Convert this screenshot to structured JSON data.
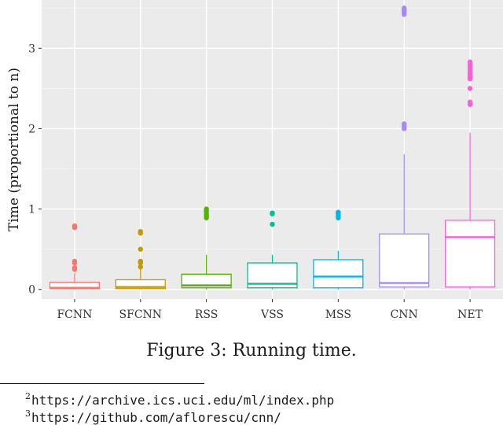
{
  "chart_data": {
    "type": "box",
    "ylabel": "Time (proportional to n)",
    "ylim": [
      -0.12,
      3.6
    ],
    "yticks": [
      0,
      1,
      2,
      3
    ],
    "grid": true,
    "legend": "none",
    "categories": [
      "FCNN",
      "SFCNN",
      "RSS",
      "VSS",
      "MSS",
      "CNN",
      "NET"
    ],
    "colors": [
      "#F8766D",
      "#C49A00",
      "#53B400",
      "#00C094",
      "#00B6EB",
      "#A58AFF",
      "#FB61D7"
    ],
    "boxes": [
      {
        "name": "FCNN",
        "min": 0.0,
        "q1": 0.01,
        "median": 0.02,
        "q3": 0.09,
        "max": 0.2,
        "outliers": [
          0.25,
          0.27,
          0.33,
          0.35,
          0.77,
          0.79
        ]
      },
      {
        "name": "SFCNN",
        "min": 0.0,
        "q1": 0.01,
        "median": 0.03,
        "q3": 0.12,
        "max": 0.26,
        "outliers": [
          0.28,
          0.33,
          0.35,
          0.5,
          0.7,
          0.72
        ]
      },
      {
        "name": "RSS",
        "min": 0.0,
        "q1": 0.02,
        "median": 0.05,
        "q3": 0.19,
        "max": 0.43,
        "outliers": [
          0.89,
          0.91,
          0.93,
          0.96,
          0.98,
          1.0
        ]
      },
      {
        "name": "VSS",
        "min": 0.0,
        "q1": 0.02,
        "median": 0.07,
        "q3": 0.33,
        "max": 0.43,
        "outliers": [
          0.81,
          0.94,
          0.95
        ]
      },
      {
        "name": "MSS",
        "min": 0.0,
        "q1": 0.02,
        "median": 0.16,
        "q3": 0.37,
        "max": 0.48,
        "outliers": [
          0.89,
          0.91,
          0.93,
          0.95,
          0.96
        ]
      },
      {
        "name": "CNN",
        "min": 0.0,
        "q1": 0.03,
        "median": 0.08,
        "q3": 0.69,
        "max": 1.68,
        "outliers": [
          2.0,
          2.02,
          2.04,
          2.06,
          3.42,
          3.44,
          3.46,
          3.48,
          3.5
        ]
      },
      {
        "name": "NET",
        "min": 0.0,
        "q1": 0.03,
        "median": 0.65,
        "q3": 0.86,
        "max": 1.95,
        "outliers": [
          2.3,
          2.33,
          2.5,
          2.62,
          2.64,
          2.66,
          2.68,
          2.71,
          2.74,
          2.77,
          2.8,
          2.83
        ]
      }
    ]
  },
  "caption": "Figure 3: Running time.",
  "footnotes": [
    {
      "mark": "2",
      "text": "https://archive.ics.uci.edu/ml/index.php"
    },
    {
      "mark": "3",
      "text": "https://github.com/aflorescu/cnn/"
    }
  ]
}
